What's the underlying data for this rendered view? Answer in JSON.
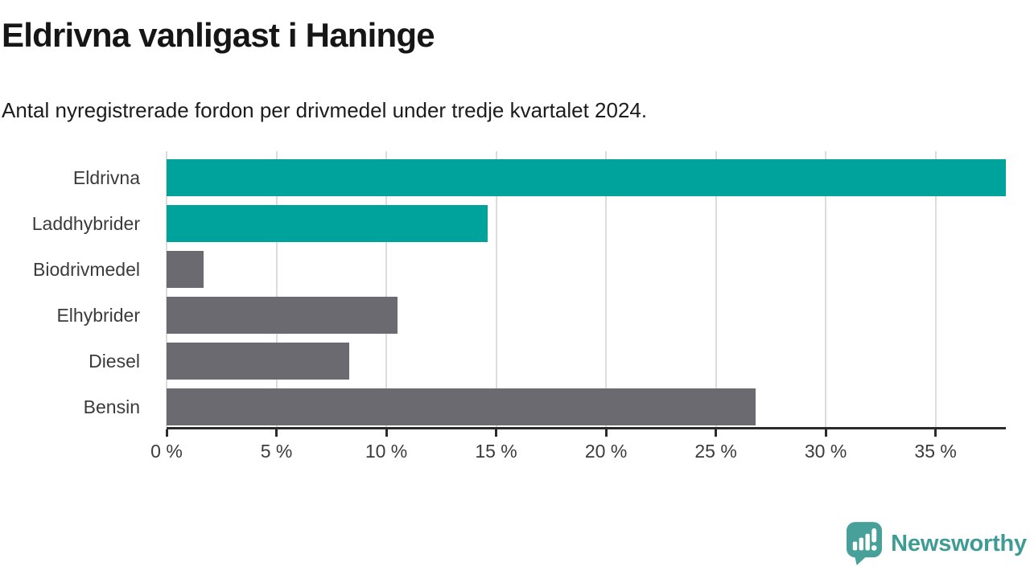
{
  "title": "Eldrivna vanligast i Haninge",
  "subtitle": "Antal nyregistrerade fordon per drivmedel under tredje kvartalet 2024.",
  "colors": {
    "accent_teal": "#00A39B",
    "muted_gray": "#6B6A70",
    "gridline": "#DCDCDC",
    "axis": "#2B2B2B",
    "logo_teal": "#47A09A",
    "logo_text_teal": "#3E9C95",
    "title_text": "#161616",
    "label_text": "#3B3B3B"
  },
  "chart_data": {
    "type": "bar",
    "orientation": "horizontal",
    "title": "Eldrivna vanligast i Haninge",
    "subtitle": "Antal nyregistrerade fordon per drivmedel under tredje kvartalet 2024.",
    "categories": [
      "Eldrivna",
      "Laddhybrider",
      "Biodrivmedel",
      "Elhybrider",
      "Diesel",
      "Bensin"
    ],
    "values": [
      38.2,
      14.6,
      1.7,
      10.5,
      8.3,
      26.8
    ],
    "unit": "%",
    "bar_colors": [
      "#00A39B",
      "#00A39B",
      "#6B6A70",
      "#6B6A70",
      "#6B6A70",
      "#6B6A70"
    ],
    "highlighted_categories": [
      "Eldrivna",
      "Laddhybrider"
    ],
    "xlim": [
      0,
      38.2
    ],
    "xticks": [
      0,
      5,
      10,
      15,
      20,
      25,
      30,
      35
    ],
    "tick_suffix": " %",
    "grid": true,
    "legend": "none"
  },
  "footer": {
    "brand": "Newsworthy",
    "logo_icon": "bar-chart-speech-bubble-icon"
  }
}
